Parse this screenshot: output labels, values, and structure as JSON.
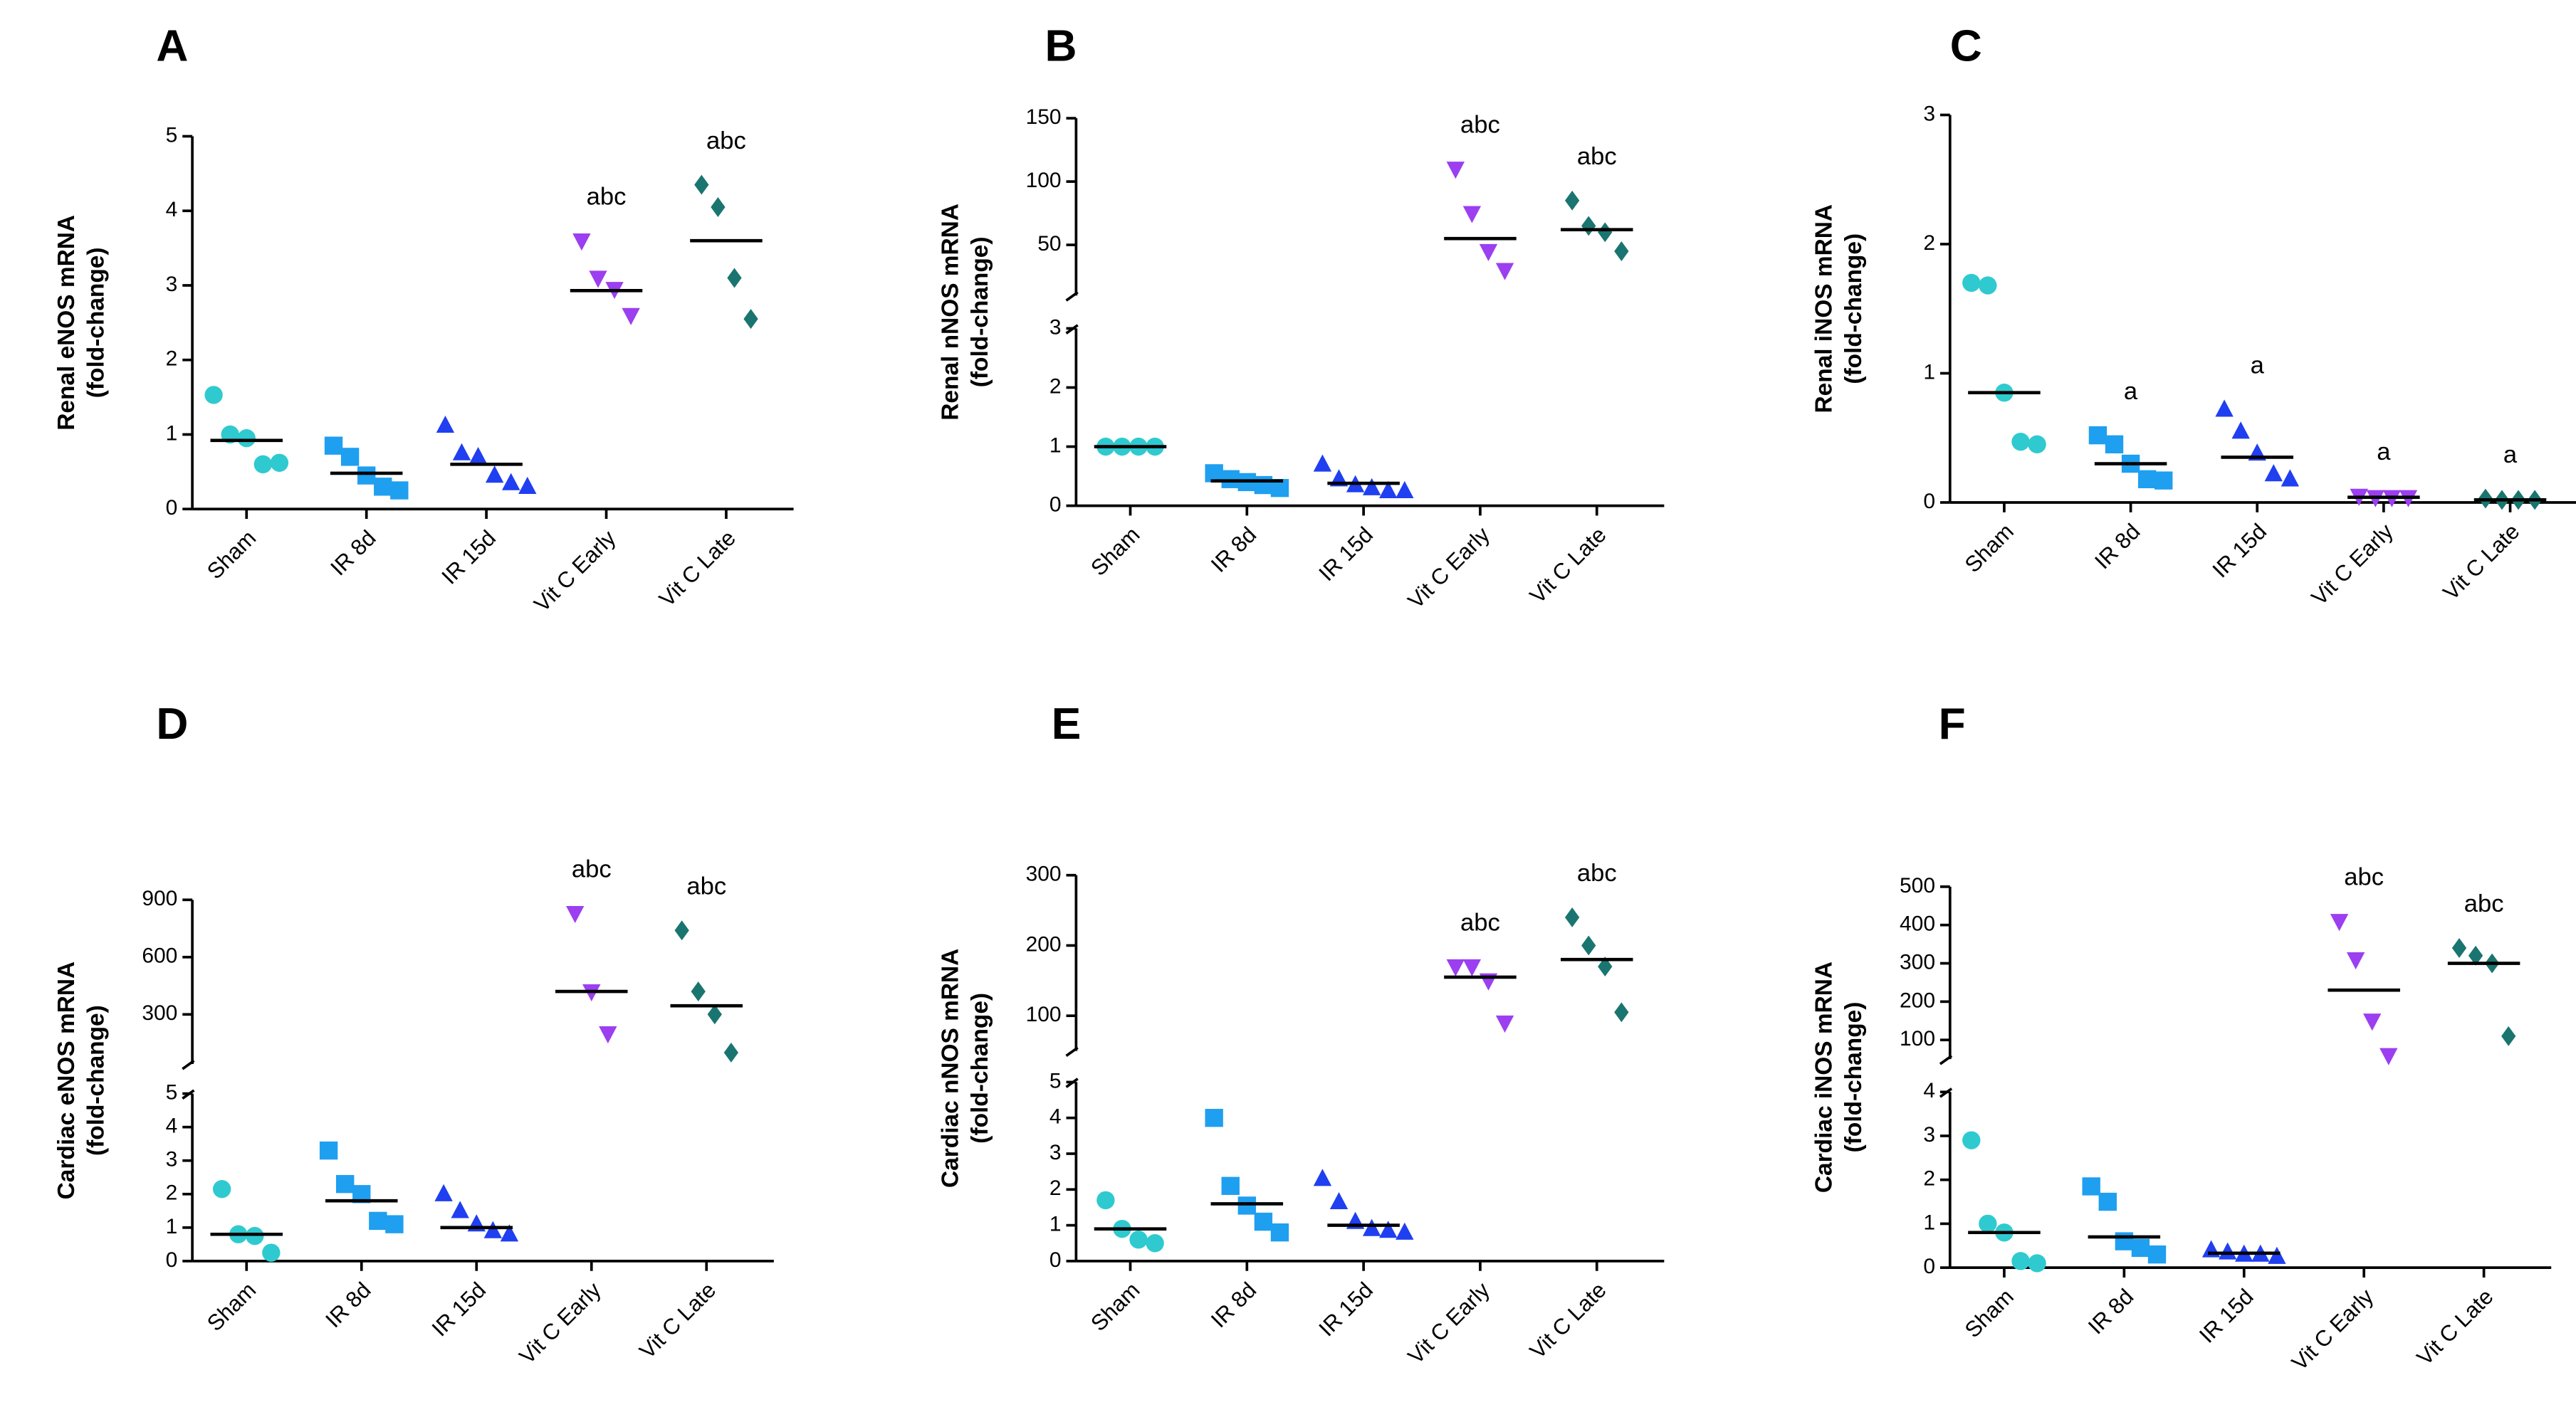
{
  "chart_data": [
    {
      "type": "dot",
      "panel": "A",
      "ylabel": [
        "Renal eNOS mRNA",
        "(fold-change)"
      ],
      "categories": [
        "Sham",
        "IR 8d",
        "IR 15d",
        "Vit C Early",
        "Vit C Late"
      ],
      "colors": [
        "#2ecad0",
        "#1f9ff0",
        "#1f3ff0",
        "#9b3ff0",
        "#1a7570"
      ],
      "markers": [
        "circle",
        "square",
        "triangle",
        "triangle-down",
        "diamond"
      ],
      "values": [
        [
          1.53,
          1.0,
          0.95,
          0.6,
          0.62
        ],
        [
          0.85,
          0.7,
          0.45,
          0.3,
          0.25
        ],
        [
          1.12,
          0.75,
          0.7,
          0.45,
          0.35,
          0.3
        ],
        [
          3.6,
          3.1,
          2.95,
          2.6
        ],
        [
          4.35,
          4.05,
          3.1,
          2.55
        ]
      ],
      "means": [
        0.92,
        0.48,
        0.6,
        2.93,
        3.6
      ],
      "annotations": [
        null,
        null,
        null,
        "abc",
        "abc"
      ],
      "segments": [
        {
          "ylim": [
            0,
            5
          ],
          "yticks": [
            0,
            1,
            2,
            3,
            4,
            5
          ]
        }
      ]
    },
    {
      "type": "dot",
      "panel": "B",
      "ylabel": [
        "Renal nNOS mRNA",
        "(fold-change)"
      ],
      "categories": [
        "Sham",
        "IR 8d",
        "IR 15d",
        "Vit C Early",
        "Vit C Late"
      ],
      "colors": [
        "#2ecad0",
        "#1f9ff0",
        "#1f3ff0",
        "#9b3ff0",
        "#1a7570"
      ],
      "markers": [
        "circle",
        "square",
        "triangle",
        "triangle-down",
        "diamond"
      ],
      "values": [
        [
          1,
          1,
          1,
          1
        ],
        [
          0.55,
          0.45,
          0.4,
          0.35,
          0.3
        ],
        [
          0.7,
          0.45,
          0.35,
          0.3,
          0.25,
          0.25
        ],
        [
          110,
          75,
          45,
          30
        ],
        [
          85,
          65,
          60,
          45
        ]
      ],
      "means": [
        1,
        0.42,
        0.38,
        55,
        62
      ],
      "annotations": [
        null,
        null,
        null,
        "abc",
        "abc"
      ],
      "segments": [
        {
          "ylim": [
            0,
            3
          ],
          "yticks": [
            0,
            1,
            2,
            3
          ]
        },
        {
          "ylim": [
            10,
            150
          ],
          "yticks": [
            50,
            100,
            150
          ]
        }
      ]
    },
    {
      "type": "dot",
      "panel": "C",
      "ylabel": [
        "Renal iNOS mRNA",
        "(fold-change)"
      ],
      "categories": [
        "Sham",
        "IR 8d",
        "IR 15d",
        "Vit C Early",
        "Vit C Late"
      ],
      "colors": [
        "#2ecad0",
        "#1f9ff0",
        "#1f3ff0",
        "#9b3ff0",
        "#1a7570"
      ],
      "markers": [
        "circle",
        "square",
        "triangle",
        "triangle-down",
        "diamond"
      ],
      "values": [
        [
          1.7,
          1.68,
          0.85,
          0.47,
          0.45
        ],
        [
          0.52,
          0.45,
          0.3,
          0.18,
          0.17
        ],
        [
          0.72,
          0.55,
          0.38,
          0.22,
          0.18
        ],
        [
          0.05,
          0.04,
          0.04,
          0.04
        ],
        [
          0.03,
          0.02,
          0.02,
          0.02
        ]
      ],
      "means": [
        0.85,
        0.3,
        0.35,
        0.04,
        0.02
      ],
      "annotations": [
        null,
        "a",
        "a",
        "a",
        "a"
      ],
      "segments": [
        {
          "ylim": [
            0,
            3
          ],
          "yticks": [
            0,
            1,
            2,
            3
          ]
        }
      ]
    },
    {
      "type": "dot",
      "panel": "D",
      "ylabel": [
        "Cardiac eNOS mRNA",
        "(fold-change)"
      ],
      "categories": [
        "Sham",
        "IR 8d",
        "IR 15d",
        "Vit C Early",
        "Vit C Late"
      ],
      "colors": [
        "#2ecad0",
        "#1f9ff0",
        "#1f3ff0",
        "#9b3ff0",
        "#1a7570"
      ],
      "markers": [
        "circle",
        "square",
        "triangle",
        "triangle-down",
        "diamond"
      ],
      "values": [
        [
          2.15,
          0.8,
          0.75,
          0.25
        ],
        [
          3.3,
          2.3,
          2.0,
          1.2,
          1.1
        ],
        [
          2.0,
          1.5,
          1.1,
          0.9,
          0.8
        ],
        [
          830,
          420,
          200
        ],
        [
          740,
          420,
          300,
          100
        ]
      ],
      "means": [
        0.8,
        1.8,
        1.0,
        420,
        345
      ],
      "annotations": [
        null,
        null,
        null,
        "abc",
        "abc"
      ],
      "segments": [
        {
          "ylim": [
            0,
            5
          ],
          "yticks": [
            0,
            1,
            2,
            3,
            4,
            5
          ]
        },
        {
          "ylim": [
            40,
            900
          ],
          "yticks": [
            300,
            600,
            900
          ]
        }
      ]
    },
    {
      "type": "dot",
      "panel": "E",
      "ylabel": [
        "Cardiac nNOS mRNA",
        "(fold-change)"
      ],
      "categories": [
        "Sham",
        "IR 8d",
        "IR 15d",
        "Vit C Early",
        "Vit C Late"
      ],
      "colors": [
        "#2ecad0",
        "#1f9ff0",
        "#1f3ff0",
        "#9b3ff0",
        "#1a7570"
      ],
      "markers": [
        "circle",
        "square",
        "triangle",
        "triangle-down",
        "diamond"
      ],
      "values": [
        [
          1.7,
          0.9,
          0.6,
          0.5
        ],
        [
          4.0,
          2.1,
          1.55,
          1.1,
          0.8
        ],
        [
          2.3,
          1.65,
          1.1,
          0.9,
          0.85,
          0.8
        ],
        [
          170,
          170,
          150,
          90
        ],
        [
          240,
          200,
          170,
          105
        ]
      ],
      "means": [
        0.9,
        1.6,
        1.0,
        155,
        180
      ],
      "annotations": [
        null,
        null,
        null,
        "abc",
        "abc"
      ],
      "segments": [
        {
          "ylim": [
            0,
            5
          ],
          "yticks": [
            0,
            1,
            2,
            3,
            4,
            5
          ]
        },
        {
          "ylim": [
            50,
            300
          ],
          "yticks": [
            100,
            200,
            300
          ]
        }
      ]
    },
    {
      "type": "dot",
      "panel": "F",
      "ylabel": [
        "Cardiac iNOS mRNA",
        "(fold-change)"
      ],
      "categories": [
        "Sham",
        "IR 8d",
        "IR 15d",
        "Vit C Early",
        "Vit C Late"
      ],
      "colors": [
        "#2ecad0",
        "#1f9ff0",
        "#1f3ff0",
        "#9b3ff0",
        "#1a7570"
      ],
      "markers": [
        "circle",
        "square",
        "triangle",
        "triangle-down",
        "diamond"
      ],
      "values": [
        [
          2.9,
          1.0,
          0.8,
          0.15,
          0.1
        ],
        [
          1.85,
          1.5,
          0.6,
          0.45,
          0.3
        ],
        [
          0.4,
          0.35,
          0.3,
          0.3,
          0.25
        ],
        [
          410,
          310,
          150,
          60
        ],
        [
          340,
          320,
          300,
          110
        ]
      ],
      "means": [
        0.8,
        0.7,
        0.33,
        230,
        300
      ],
      "annotations": [
        null,
        null,
        null,
        "abc",
        "abc"
      ],
      "segments": [
        {
          "ylim": [
            0,
            4
          ],
          "yticks": [
            0,
            1,
            2,
            3,
            4
          ]
        },
        {
          "ylim": [
            50,
            500
          ],
          "yticks": [
            100,
            200,
            300,
            400,
            500
          ]
        }
      ]
    }
  ]
}
